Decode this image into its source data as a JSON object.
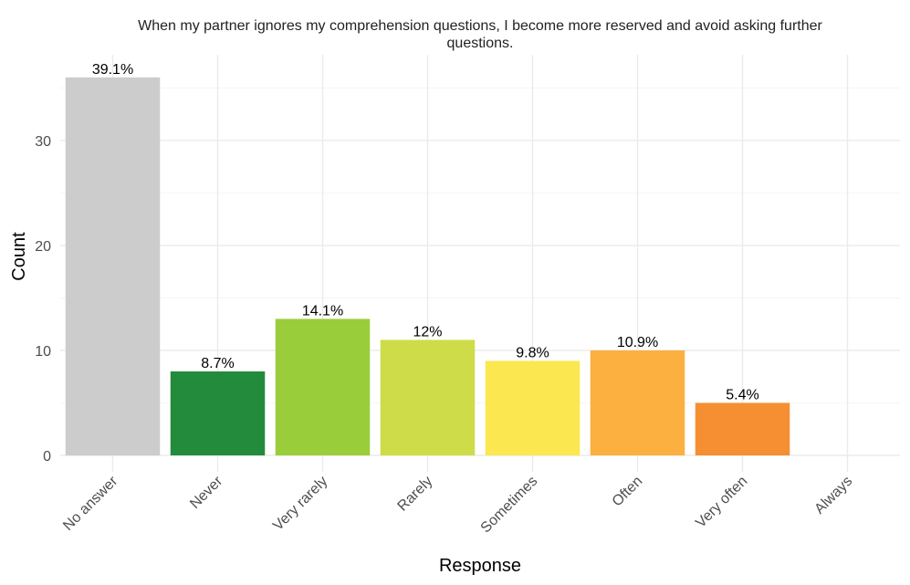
{
  "chart_data": {
    "type": "bar",
    "title_lines": [
      "When my partner ignores my comprehension questions, I become more reserved and avoid asking further",
      "questions."
    ],
    "xlabel": "Response",
    "ylabel": "Count",
    "categories": [
      "No answer",
      "Never",
      "Very rarely",
      "Rarely",
      "Sometimes",
      "Often",
      "Very often",
      "Always"
    ],
    "values": [
      36,
      8,
      13,
      11,
      9,
      10,
      5,
      0
    ],
    "labels": [
      "39.1%",
      "8.7%",
      "14.1%",
      "12%",
      "9.8%",
      "10.9%",
      "5.4%",
      ""
    ],
    "colors": [
      "#cccccc",
      "#238b3c",
      "#9acd3a",
      "#cddc48",
      "#fbe850",
      "#fbb040",
      "#f68e32",
      "#d9480f"
    ],
    "ylim": [
      0,
      37.8
    ],
    "yticks": [
      0,
      10,
      20,
      30
    ],
    "grid": true,
    "legend": "none"
  }
}
